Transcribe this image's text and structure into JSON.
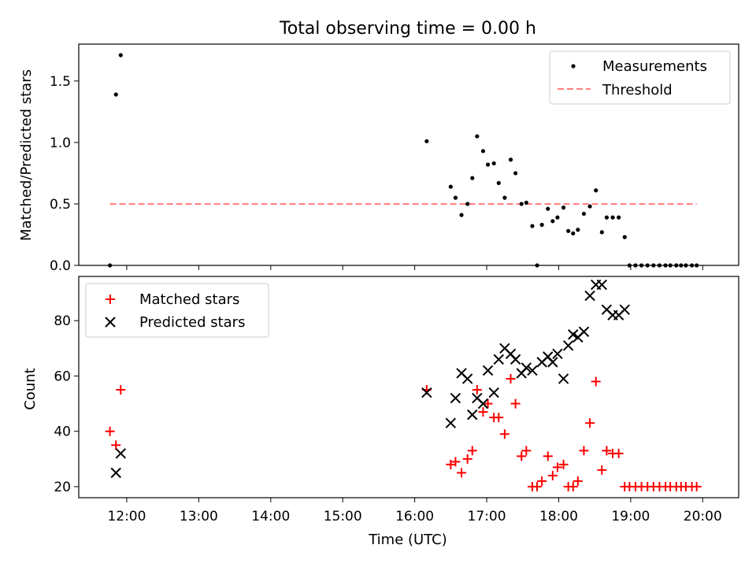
{
  "chart_data": [
    {
      "type": "scatter",
      "title": "Total observing time = 0.00 h",
      "xlabel": "",
      "ylabel": "Matched/Predicted stars",
      "ylim": [
        0,
        1.8
      ],
      "yticks": [
        0.0,
        0.5,
        1.0,
        1.5
      ],
      "ytick_labels": [
        "0.0",
        "0.5",
        "1.0",
        "1.5"
      ],
      "xlim": [
        "11:20",
        "20:30"
      ],
      "legend": {
        "placement": "top-right",
        "entries": [
          "Measurements",
          "Threshold"
        ]
      },
      "colors": {
        "measurements": "#000000",
        "threshold": "#ff7f7f"
      },
      "series": [
        {
          "name": "Measurements",
          "marker": "dot",
          "points": [
            [
              "11:46",
              0.0
            ],
            [
              "11:51",
              1.39
            ],
            [
              "11:55",
              1.71
            ],
            [
              "16:10",
              1.01
            ],
            [
              "16:30",
              0.64
            ],
            [
              "16:34",
              0.55
            ],
            [
              "16:39",
              0.41
            ],
            [
              "16:44",
              0.5
            ],
            [
              "16:48",
              0.71
            ],
            [
              "16:52",
              1.05
            ],
            [
              "16:57",
              0.93
            ],
            [
              "17:01",
              0.82
            ],
            [
              "17:06",
              0.83
            ],
            [
              "17:10",
              0.67
            ],
            [
              "17:15",
              0.55
            ],
            [
              "17:20",
              0.86
            ],
            [
              "17:24",
              0.75
            ],
            [
              "17:29",
              0.5
            ],
            [
              "17:33",
              0.51
            ],
            [
              "17:38",
              0.32
            ],
            [
              "17:42",
              0.0
            ],
            [
              "17:46",
              0.33
            ],
            [
              "17:51",
              0.46
            ],
            [
              "17:55",
              0.36
            ],
            [
              "17:59",
              0.39
            ],
            [
              "18:04",
              0.47
            ],
            [
              "18:08",
              0.28
            ],
            [
              "18:12",
              0.26
            ],
            [
              "18:16",
              0.29
            ],
            [
              "18:21",
              0.42
            ],
            [
              "18:26",
              0.48
            ],
            [
              "18:31",
              0.61
            ],
            [
              "18:36",
              0.27
            ],
            [
              "18:40",
              0.39
            ],
            [
              "18:45",
              0.39
            ],
            [
              "18:50",
              0.39
            ],
            [
              "18:55",
              0.23
            ],
            [
              "18:59",
              0.0
            ],
            [
              "19:04",
              0.0
            ],
            [
              "19:09",
              0.0
            ],
            [
              "19:14",
              0.0
            ],
            [
              "19:19",
              0.0
            ],
            [
              "19:24",
              0.0
            ],
            [
              "19:29",
              0.0
            ],
            [
              "19:33",
              0.0
            ],
            [
              "19:38",
              0.0
            ],
            [
              "19:42",
              0.0
            ],
            [
              "19:46",
              0.0
            ],
            [
              "19:51",
              0.0
            ],
            [
              "19:55",
              0.0
            ]
          ]
        },
        {
          "name": "Threshold",
          "marker": "dashed-line",
          "points": [
            [
              "11:46",
              0.5
            ],
            [
              "19:55",
              0.5
            ]
          ]
        }
      ]
    },
    {
      "type": "scatter",
      "title": "",
      "xlabel": "Time (UTC)",
      "ylabel": "Count",
      "ylim": [
        16,
        96
      ],
      "yticks": [
        20,
        40,
        60,
        80
      ],
      "ytick_labels": [
        "20",
        "40",
        "60",
        "80"
      ],
      "xlim": [
        "11:20",
        "20:30"
      ],
      "xticks": [
        "12:00",
        "13:00",
        "14:00",
        "15:00",
        "16:00",
        "17:00",
        "18:00",
        "19:00",
        "20:00"
      ],
      "legend": {
        "placement": "top-left",
        "entries": [
          "Matched stars",
          "Predicted stars"
        ]
      },
      "colors": {
        "matched": "#ff0000",
        "predicted": "#000000"
      },
      "series": [
        {
          "name": "Matched stars",
          "marker": "plus",
          "points": [
            [
              "11:46",
              40
            ],
            [
              "11:51",
              35
            ],
            [
              "11:55",
              55
            ],
            [
              "16:10",
              55
            ],
            [
              "16:30",
              28
            ],
            [
              "16:34",
              29
            ],
            [
              "16:39",
              25
            ],
            [
              "16:44",
              30
            ],
            [
              "16:48",
              33
            ],
            [
              "16:52",
              55
            ],
            [
              "16:57",
              47
            ],
            [
              "17:01",
              50
            ],
            [
              "17:06",
              45
            ],
            [
              "17:10",
              45
            ],
            [
              "17:15",
              39
            ],
            [
              "17:20",
              59
            ],
            [
              "17:24",
              50
            ],
            [
              "17:29",
              31
            ],
            [
              "17:33",
              33
            ],
            [
              "17:38",
              20
            ],
            [
              "17:42",
              20
            ],
            [
              "17:46",
              22
            ],
            [
              "17:51",
              31
            ],
            [
              "17:55",
              24
            ],
            [
              "17:59",
              27
            ],
            [
              "18:04",
              28
            ],
            [
              "18:08",
              20
            ],
            [
              "18:12",
              20
            ],
            [
              "18:16",
              22
            ],
            [
              "18:21",
              33
            ],
            [
              "18:26",
              43
            ],
            [
              "18:31",
              58
            ],
            [
              "18:36",
              26
            ],
            [
              "18:40",
              33
            ],
            [
              "18:45",
              32
            ],
            [
              "18:50",
              32
            ],
            [
              "18:55",
              20
            ],
            [
              "18:59",
              20
            ],
            [
              "19:04",
              20
            ],
            [
              "19:09",
              20
            ],
            [
              "19:14",
              20
            ],
            [
              "19:19",
              20
            ],
            [
              "19:24",
              20
            ],
            [
              "19:29",
              20
            ],
            [
              "19:33",
              20
            ],
            [
              "19:38",
              20
            ],
            [
              "19:42",
              20
            ],
            [
              "19:46",
              20
            ],
            [
              "19:51",
              20
            ],
            [
              "19:55",
              20
            ]
          ]
        },
        {
          "name": "Predicted stars",
          "marker": "x",
          "points": [
            [
              "11:51",
              25
            ],
            [
              "11:55",
              32
            ],
            [
              "16:10",
              54
            ],
            [
              "16:30",
              43
            ],
            [
              "16:34",
              52
            ],
            [
              "16:39",
              61
            ],
            [
              "16:44",
              59
            ],
            [
              "16:48",
              46
            ],
            [
              "16:52",
              52
            ],
            [
              "16:57",
              50
            ],
            [
              "17:01",
              62
            ],
            [
              "17:06",
              54
            ],
            [
              "17:10",
              66
            ],
            [
              "17:15",
              70
            ],
            [
              "17:20",
              68
            ],
            [
              "17:24",
              66
            ],
            [
              "17:29",
              61
            ],
            [
              "17:33",
              63
            ],
            [
              "17:38",
              62
            ],
            [
              "17:46",
              65
            ],
            [
              "17:51",
              67
            ],
            [
              "17:55",
              65
            ],
            [
              "17:59",
              68
            ],
            [
              "18:04",
              59
            ],
            [
              "18:08",
              71
            ],
            [
              "18:12",
              75
            ],
            [
              "18:16",
              74
            ],
            [
              "18:21",
              76
            ],
            [
              "18:26",
              89
            ],
            [
              "18:31",
              93
            ],
            [
              "18:36",
              93
            ],
            [
              "18:40",
              84
            ],
            [
              "18:45",
              82
            ],
            [
              "18:50",
              82
            ],
            [
              "18:55",
              84
            ]
          ]
        }
      ]
    }
  ]
}
